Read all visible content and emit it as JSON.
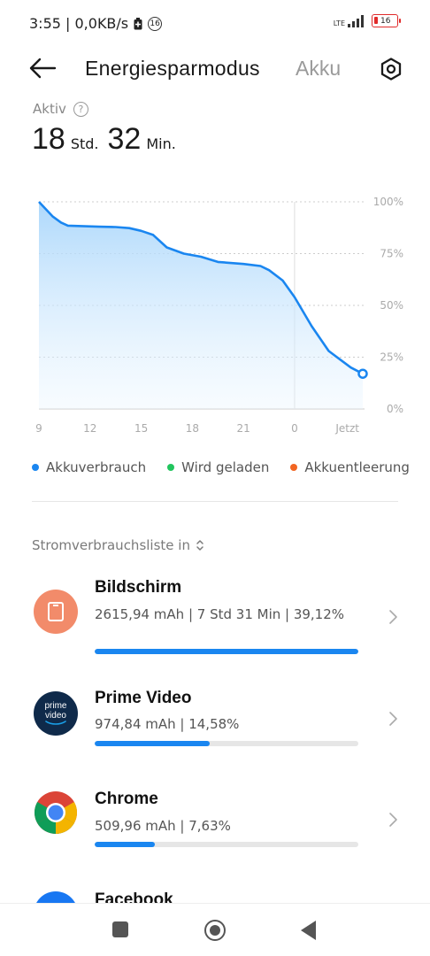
{
  "status_bar": {
    "time_speed": "3:55 | 0,0KB/s",
    "notification_count": "16",
    "network": "LTE",
    "battery_level": "16",
    "battery_color": "#e02a2a"
  },
  "header": {
    "title": "Energiesparmodus",
    "tab_akku": "Akku",
    "back_icon": "arrow-left-icon",
    "settings_icon": "gear-icon"
  },
  "summary": {
    "label": "Aktiv",
    "hours_value": "18",
    "hours_unit": "Std.",
    "minutes_value": "32",
    "minutes_unit": "Min."
  },
  "chart_data": {
    "type": "area",
    "x_tick_labels": [
      "9",
      "12",
      "15",
      "18",
      "21",
      "0",
      "Jetzt"
    ],
    "y_tick_labels": [
      "100%",
      "75%",
      "50%",
      "25%",
      "0%"
    ],
    "x_hours": [
      0,
      0.8,
      1.3,
      1.7,
      2.5,
      3.5,
      4.5,
      5.3,
      6.0,
      6.7,
      7.5,
      8.5,
      9.5,
      10.5,
      12.0,
      13.0,
      13.5,
      14.3,
      15.0,
      16.0,
      17.0,
      18.3,
      19.0
    ],
    "values": [
      100,
      93,
      90,
      88.5,
      88.3,
      88,
      87.8,
      87.3,
      86,
      84,
      78,
      75,
      73.5,
      71,
      70,
      69,
      67,
      62,
      54,
      40,
      28,
      20,
      17
    ],
    "ylim": [
      0,
      100
    ],
    "grid": true,
    "series_color": "#1a86f0"
  },
  "legend": {
    "items": [
      {
        "label": "Akkuverbrauch",
        "color": "#1a86f0"
      },
      {
        "label": "Wird geladen",
        "color": "#22c55e"
      },
      {
        "label": "Akkuentleerung",
        "color": "#f26522"
      }
    ]
  },
  "list": {
    "title": "Stromverbrauchsliste in",
    "apps": [
      {
        "name": "Bildschirm",
        "stats": "2615,94 mAh | 7 Std 31 Min  | 39,12%",
        "percent": 39.12,
        "icon": "screen-icon"
      },
      {
        "name": "Prime Video",
        "stats": "974,84 mAh | 14,58%",
        "percent": 14.58,
        "icon": "prime-video-icon",
        "icon_text": "prime video"
      },
      {
        "name": "Chrome",
        "stats": "509,96 mAh | 7,63%",
        "percent": 7.63,
        "icon": "chrome-icon"
      },
      {
        "name": "Facebook",
        "icon": "facebook-icon"
      }
    ]
  }
}
